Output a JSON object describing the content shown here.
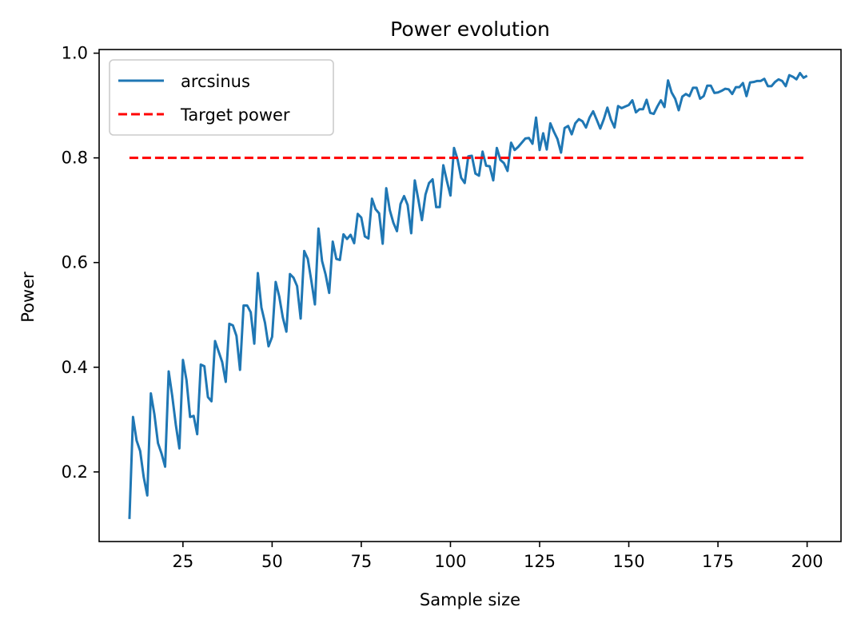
{
  "chart_data": {
    "type": "line",
    "title": "Power evolution",
    "xlabel": "Sample size",
    "ylabel": "Power",
    "xlim": [
      1.5,
      209.5
    ],
    "ylim": [
      0.067,
      1.007
    ],
    "xticks": [
      25,
      50,
      75,
      100,
      125,
      150,
      175,
      200
    ],
    "yticks": [
      0.2,
      0.4,
      0.6,
      0.8,
      1.0
    ],
    "xtick_labels": [
      "25",
      "50",
      "75",
      "100",
      "125",
      "150",
      "175",
      "200"
    ],
    "ytick_labels": [
      "0.2",
      "0.4",
      "0.6",
      "0.8",
      "1.0"
    ],
    "grid": false,
    "legend_placement": "upper-left",
    "series": [
      {
        "name": "arcsinus",
        "color": "#1f77b4",
        "style": "solid",
        "x": [
          10,
          11,
          12,
          13,
          14,
          15,
          16,
          17,
          18,
          19,
          20,
          21,
          22,
          23,
          24,
          25,
          26,
          27,
          28,
          29,
          30,
          31,
          32,
          33,
          34,
          35,
          36,
          37,
          38,
          39,
          40,
          41,
          42,
          43,
          44,
          45,
          46,
          47,
          48,
          49,
          50,
          51,
          52,
          53,
          54,
          55,
          56,
          57,
          58,
          59,
          60,
          61,
          62,
          63,
          64,
          65,
          66,
          67,
          68,
          69,
          70,
          71,
          72,
          73,
          74,
          75,
          76,
          77,
          78,
          79,
          80,
          81,
          82,
          83,
          84,
          85,
          86,
          87,
          88,
          89,
          90,
          91,
          92,
          93,
          94,
          95,
          96,
          97,
          98,
          99,
          100,
          101,
          102,
          103,
          104,
          105,
          106,
          107,
          108,
          109,
          110,
          111,
          112,
          113,
          114,
          115,
          116,
          117,
          118,
          119,
          120,
          121,
          122,
          123,
          124,
          125,
          126,
          127,
          128,
          129,
          130,
          131,
          132,
          133,
          134,
          135,
          136,
          137,
          138,
          139,
          140,
          141,
          142,
          143,
          144,
          145,
          146,
          147,
          148,
          149,
          150,
          151,
          152,
          153,
          154,
          155,
          156,
          157,
          158,
          159,
          160,
          161,
          162,
          163,
          164,
          165,
          166,
          167,
          168,
          169,
          170,
          171,
          172,
          173,
          174,
          175,
          176,
          177,
          178,
          179,
          180,
          181,
          182,
          183,
          184,
          185,
          186,
          187,
          188,
          189,
          190,
          191,
          192,
          193,
          194,
          195,
          196,
          197,
          198,
          199,
          200
        ],
        "y": [
          0.11,
          0.305,
          0.26,
          0.24,
          0.19,
          0.155,
          0.35,
          0.31,
          0.255,
          0.235,
          0.21,
          0.392,
          0.345,
          0.29,
          0.245,
          0.414,
          0.375,
          0.305,
          0.307,
          0.272,
          0.405,
          0.402,
          0.343,
          0.335,
          0.45,
          0.43,
          0.41,
          0.372,
          0.483,
          0.48,
          0.46,
          0.395,
          0.518,
          0.518,
          0.505,
          0.445,
          0.58,
          0.514,
          0.485,
          0.44,
          0.458,
          0.563,
          0.535,
          0.495,
          0.468,
          0.578,
          0.571,
          0.555,
          0.493,
          0.622,
          0.607,
          0.565,
          0.52,
          0.665,
          0.603,
          0.577,
          0.542,
          0.64,
          0.607,
          0.605,
          0.654,
          0.645,
          0.653,
          0.637,
          0.693,
          0.686,
          0.65,
          0.646,
          0.722,
          0.702,
          0.694,
          0.636,
          0.742,
          0.7,
          0.676,
          0.66,
          0.712,
          0.727,
          0.71,
          0.656,
          0.757,
          0.72,
          0.681,
          0.73,
          0.752,
          0.759,
          0.706,
          0.706,
          0.786,
          0.756,
          0.728,
          0.819,
          0.797,
          0.762,
          0.752,
          0.803,
          0.804,
          0.77,
          0.766,
          0.812,
          0.785,
          0.784,
          0.757,
          0.819,
          0.796,
          0.79,
          0.775,
          0.829,
          0.815,
          0.821,
          0.829,
          0.837,
          0.838,
          0.827,
          0.877,
          0.815,
          0.847,
          0.816,
          0.866,
          0.85,
          0.836,
          0.81,
          0.857,
          0.861,
          0.845,
          0.866,
          0.874,
          0.87,
          0.858,
          0.877,
          0.889,
          0.873,
          0.856,
          0.874,
          0.896,
          0.873,
          0.858,
          0.899,
          0.895,
          0.898,
          0.901,
          0.91,
          0.887,
          0.893,
          0.893,
          0.911,
          0.886,
          0.884,
          0.898,
          0.91,
          0.897,
          0.948,
          0.925,
          0.913,
          0.891,
          0.917,
          0.922,
          0.918,
          0.934,
          0.934,
          0.913,
          0.918,
          0.938,
          0.938,
          0.924,
          0.925,
          0.928,
          0.932,
          0.931,
          0.922,
          0.935,
          0.935,
          0.943,
          0.918,
          0.944,
          0.945,
          0.947,
          0.947,
          0.951,
          0.937,
          0.937,
          0.945,
          0.95,
          0.947,
          0.937,
          0.958,
          0.955,
          0.95,
          0.962,
          0.953,
          0.957
        ]
      },
      {
        "name": "Target power",
        "color": "#ff0000",
        "style": "dashed",
        "x": [
          10,
          200
        ],
        "y": [
          0.8,
          0.8
        ]
      }
    ]
  }
}
